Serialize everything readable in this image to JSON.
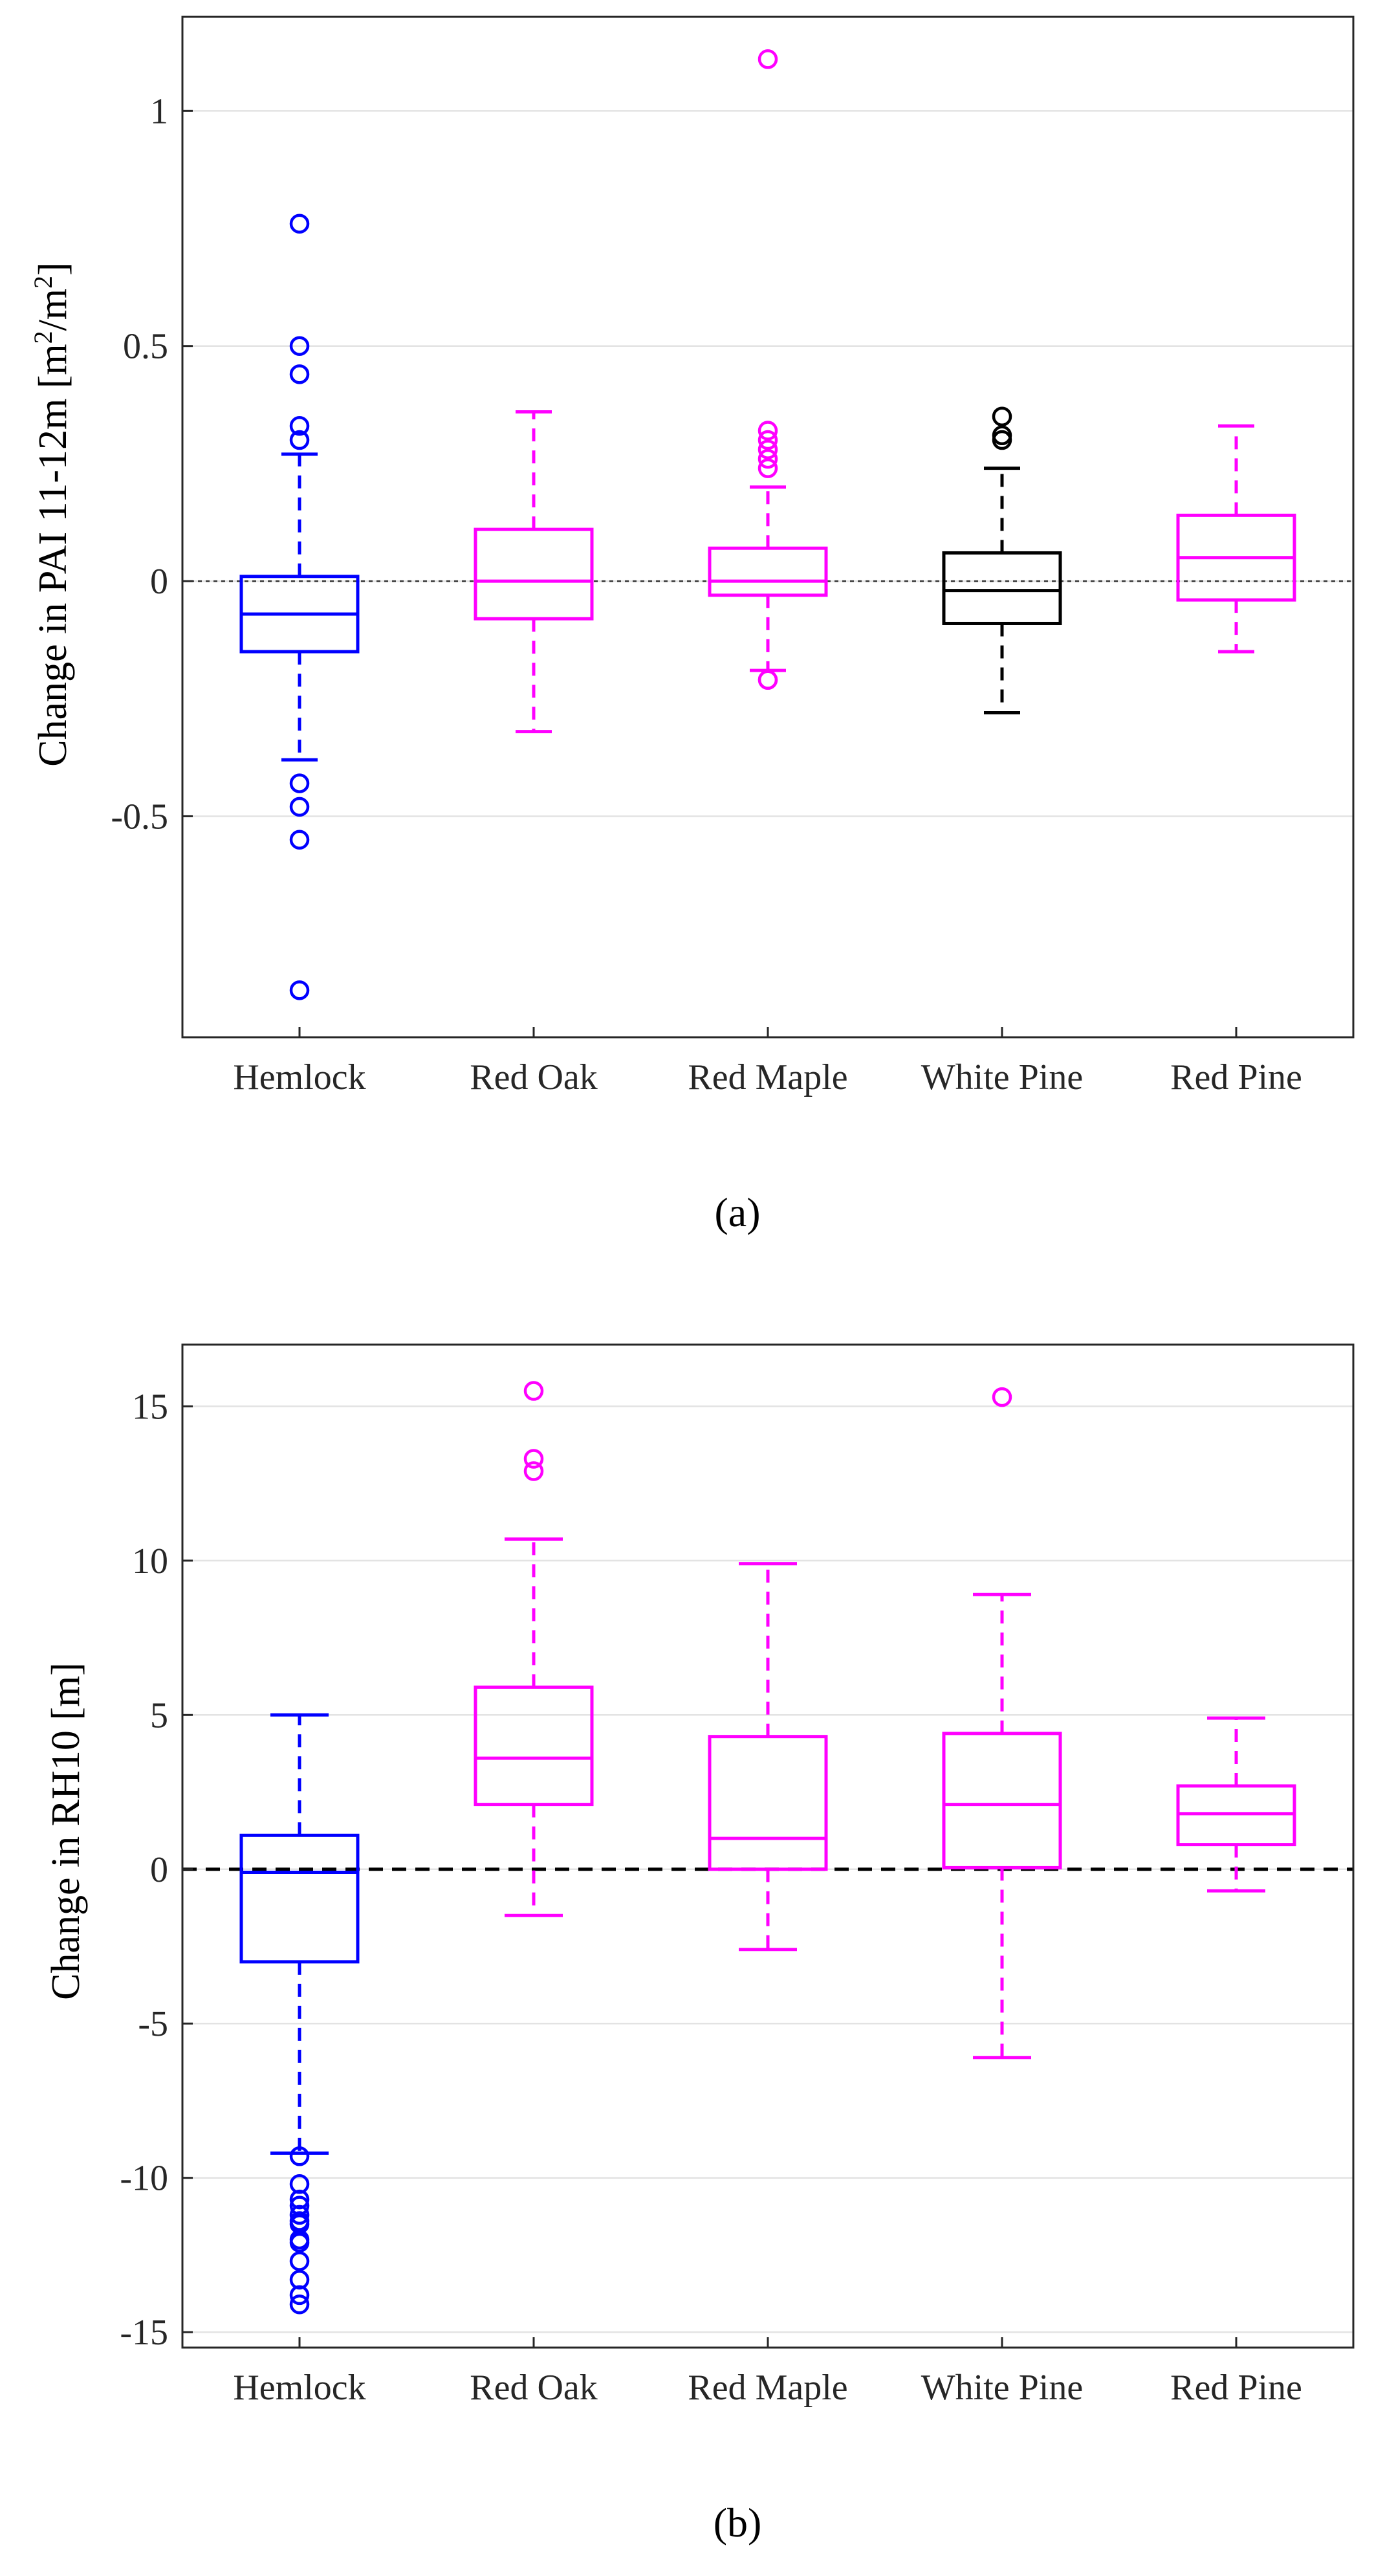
{
  "chart_data": [
    {
      "type": "boxplot",
      "caption": "(a)",
      "ylabel_main": "Change in PAI 11-12m [m",
      "ylabel_sup1": "2",
      "ylabel_mid": "/m",
      "ylabel_sup2": "2",
      "ylabel_end": "]",
      "ylim": [
        -0.97,
        1.2
      ],
      "yticks": [
        -0.5,
        0,
        0.5,
        1
      ],
      "ytick_labels": [
        "-0.5",
        "0",
        "0.5",
        "1"
      ],
      "zero_line": "dotted",
      "categories": [
        "Hemlock",
        "Red Oak",
        "Red Maple",
        "White Pine",
        "Red Pine"
      ],
      "colors": [
        "#0000ff",
        "#ff00ff",
        "#ff00ff",
        "#000000",
        "#ff00ff"
      ],
      "boxes": [
        {
          "category": "Hemlock",
          "lower_whisker": -0.38,
          "q1": -0.15,
          "median": -0.07,
          "q3": 0.01,
          "upper_whisker": 0.27,
          "outliers": [
            0.76,
            0.5,
            0.44,
            0.33,
            0.3,
            -0.43,
            -0.48,
            -0.55,
            -0.87
          ]
        },
        {
          "category": "Red Oak",
          "lower_whisker": -0.32,
          "q1": -0.08,
          "median": 0.0,
          "q3": 0.11,
          "upper_whisker": 0.36,
          "outliers": []
        },
        {
          "category": "Red Maple",
          "lower_whisker": -0.19,
          "q1": -0.03,
          "median": 0.0,
          "q3": 0.07,
          "upper_whisker": 0.2,
          "outliers": [
            1.11,
            0.32,
            0.3,
            0.28,
            0.26,
            0.24,
            -0.21,
            -0.21
          ]
        },
        {
          "category": "White Pine",
          "lower_whisker": -0.28,
          "q1": -0.09,
          "median": -0.02,
          "q3": 0.06,
          "upper_whisker": 0.24,
          "outliers": [
            0.35,
            0.31,
            0.3
          ]
        },
        {
          "category": "Red Pine",
          "lower_whisker": -0.15,
          "q1": -0.04,
          "median": 0.05,
          "q3": 0.14,
          "upper_whisker": 0.33,
          "outliers": []
        }
      ]
    },
    {
      "type": "boxplot",
      "caption": "(b)",
      "ylabel_main": "Change in RH10 [m]",
      "ylim": [
        -15.5,
        17
      ],
      "yticks": [
        -15,
        -10,
        -5,
        0,
        5,
        10,
        15
      ],
      "ytick_labels": [
        "-15",
        "-10",
        "-5",
        "0",
        "5",
        "10",
        "15"
      ],
      "zero_line": "dashed",
      "categories": [
        "Hemlock",
        "Red Oak",
        "Red Maple",
        "White Pine",
        "Red Pine"
      ],
      "colors": [
        "#0000ff",
        "#ff00ff",
        "#ff00ff",
        "#ff00ff",
        "#ff00ff"
      ],
      "boxes": [
        {
          "category": "Hemlock",
          "lower_whisker": -9.2,
          "q1": -3.0,
          "median": -0.1,
          "q3": 1.1,
          "upper_whisker": 5.0,
          "outliers": [
            -9.3,
            -10.2,
            -10.7,
            -10.9,
            -11.2,
            -11.4,
            -11.5,
            -12.0,
            -12.1,
            -12.7,
            -13.3,
            -13.8,
            -14.1
          ]
        },
        {
          "category": "Red Oak",
          "lower_whisker": -1.5,
          "q1": 2.1,
          "median": 3.6,
          "q3": 5.9,
          "upper_whisker": 10.7,
          "outliers": [
            15.5,
            13.3,
            12.9
          ]
        },
        {
          "category": "Red Maple",
          "lower_whisker": -2.6,
          "q1": 0.0,
          "median": 1.0,
          "q3": 4.3,
          "upper_whisker": 9.9,
          "outliers": []
        },
        {
          "category": "White Pine",
          "lower_whisker": -6.1,
          "q1": 0.05,
          "median": 2.1,
          "q3": 4.4,
          "upper_whisker": 8.9,
          "outliers": [
            15.3
          ]
        },
        {
          "category": "Red Pine",
          "lower_whisker": -0.7,
          "q1": 0.8,
          "median": 1.8,
          "q3": 2.7,
          "upper_whisker": 4.9,
          "outliers": []
        }
      ]
    }
  ]
}
